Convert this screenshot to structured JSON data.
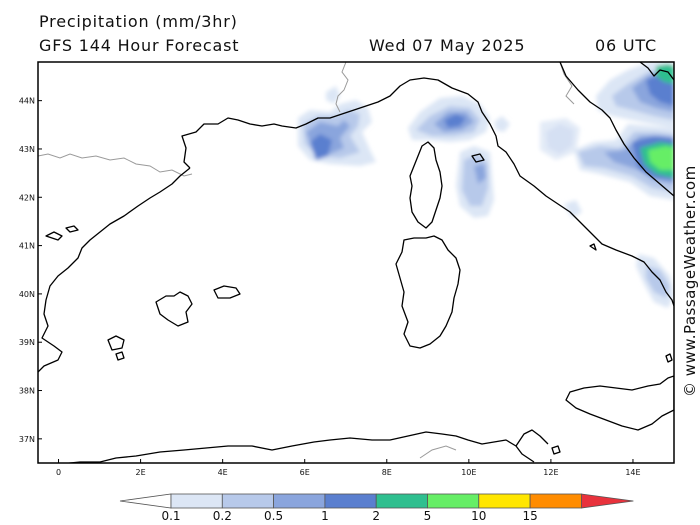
{
  "header": {
    "title": "Precipitation (mm/3hr)",
    "model": "GFS 144 Hour Forecast",
    "date": "Wed 07 May 2025",
    "time": "06 UTC"
  },
  "credit": "© www.PassageWeather.com",
  "map": {
    "lat_labels": [
      "44N",
      "43N",
      "42N",
      "41N",
      "40N",
      "39N",
      "38N",
      "37N"
    ],
    "lon_labels": [
      "0",
      "2E",
      "4E",
      "6E",
      "8E",
      "10E",
      "12E",
      "14E"
    ],
    "lat_range": [
      36.5,
      44.8
    ],
    "lon_range": [
      -0.5,
      15.0
    ],
    "colors": {
      "coast": "#000000",
      "border": "#9a9a9a",
      "p01": "#dce6f5",
      "p02": "#b7c9ea",
      "p05": "#8aa5dd",
      "p1": "#5a7fcf",
      "p2": "#2fbf8f",
      "p5": "#66ee66"
    }
  },
  "legend": {
    "labels": [
      "0.1",
      "0.2",
      "0.5",
      "1",
      "2",
      "5",
      "10",
      "15"
    ],
    "colors": [
      "#ffffff",
      "#dce6f5",
      "#b7c9ea",
      "#8aa5dd",
      "#5a7fcf",
      "#2fbf8f",
      "#66ee66",
      "#ffe600",
      "#ff8c00",
      "#e8323c"
    ]
  }
}
